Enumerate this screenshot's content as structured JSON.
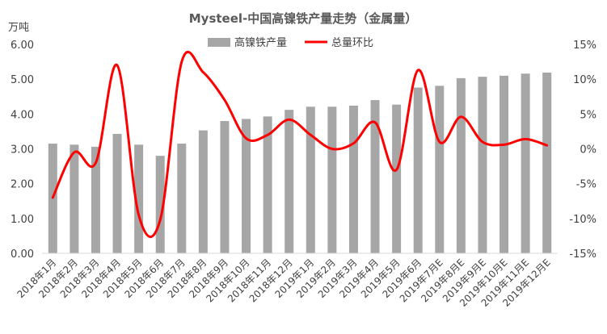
{
  "chart_data": {
    "type": "bar",
    "title": "Mysteel-中国高镍铁产量走势（金属量）",
    "y_unit": "万吨",
    "categories": [
      "2018年1月",
      "2018年2月",
      "2018年3月",
      "2018年4月",
      "2018年5月",
      "2018年6月",
      "2018年7月",
      "2018年8月",
      "2018年9月",
      "2018年10月",
      "2018年11月",
      "2018年12月",
      "2019年1月",
      "2019年2月",
      "2019年3月",
      "2019年4月",
      "2019年5月",
      "2019年6月",
      "2019年7月E",
      "2019年8月E",
      "2019年9月E",
      "2019年10月E",
      "2019年11月E",
      "2019年12月E"
    ],
    "series": [
      {
        "name": "高镍铁产量",
        "type": "bar",
        "axis": "left",
        "color": "#a6a6a6",
        "values": [
          3.15,
          3.12,
          3.06,
          3.43,
          3.12,
          2.8,
          3.15,
          3.53,
          3.8,
          3.86,
          3.93,
          4.12,
          4.21,
          4.21,
          4.24,
          4.4,
          4.27,
          4.76,
          4.81,
          5.03,
          5.07,
          5.1,
          5.16,
          5.19
        ]
      },
      {
        "name": "总量环比",
        "type": "line",
        "axis": "right",
        "color": "#ff0000",
        "values": [
          -7.0,
          -0.5,
          -2.0,
          12.0,
          -9.5,
          -10.2,
          12.5,
          11.0,
          7.0,
          1.5,
          2.0,
          4.2,
          2.0,
          0.0,
          0.8,
          3.8,
          -3.0,
          11.3,
          1.0,
          4.6,
          1.0,
          0.6,
          1.4,
          0.5
        ]
      }
    ],
    "y_left": {
      "min": 0,
      "max": 6,
      "step": 1,
      "tick_labels": [
        "0.00",
        "1.00",
        "2.00",
        "3.00",
        "4.00",
        "5.00",
        "6.00"
      ]
    },
    "y_right": {
      "min": -15,
      "max": 15,
      "step": 5,
      "tick_labels": [
        "-15%",
        "-10%",
        "-5%",
        "0%",
        "5%",
        "10%",
        "15%"
      ]
    },
    "legend_position": "top-center",
    "grid": false
  }
}
